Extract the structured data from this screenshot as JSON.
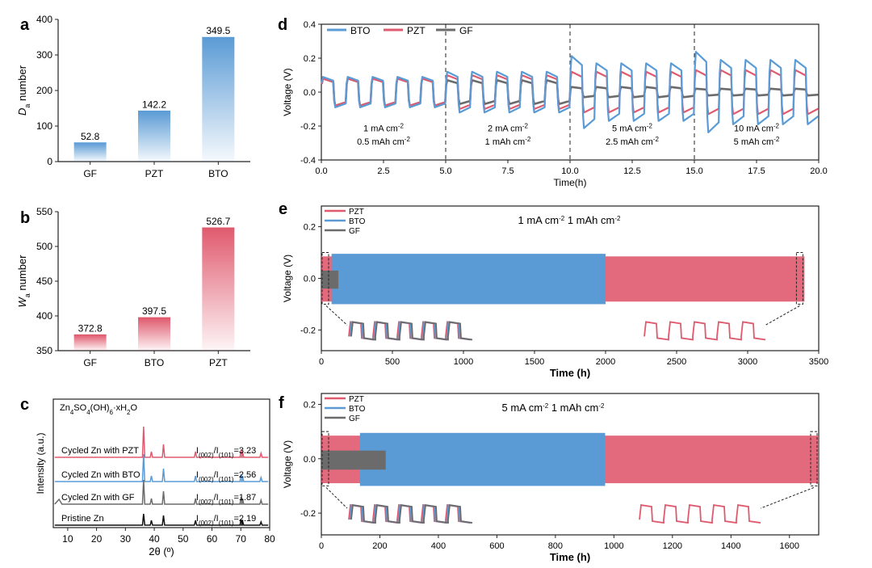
{
  "colors": {
    "btoBlue": "#5b9bd5",
    "pztRed": "#e05a6e",
    "gfGray": "#6b6b6b",
    "xrdBlack": "#111111"
  },
  "chart_data": [
    {
      "id": "a",
      "panel": "a",
      "type": "bar",
      "ylabel_main": "D",
      "ylabel_sub": "a",
      "ylabel_rest": " number",
      "categories": [
        "GF",
        "PZT",
        "BTO"
      ],
      "values": [
        52.8,
        142.2,
        349.5
      ],
      "value_labels": [
        "52.8",
        "142.2",
        "349.5"
      ],
      "colors": [
        "#5b9bd5",
        "#5b9bd5",
        "#5b9bd5"
      ],
      "ylim": [
        0,
        400
      ],
      "yticks": [
        "0",
        "100",
        "200",
        "300",
        "400"
      ]
    },
    {
      "id": "b",
      "panel": "b",
      "type": "bar",
      "ylabel_main": "W",
      "ylabel_sub": "a",
      "ylabel_rest": " number",
      "categories": [
        "GF",
        "BTO",
        "PZT"
      ],
      "values": [
        372.8,
        397.5,
        526.7
      ],
      "value_labels": [
        "372.8",
        "397.5",
        "526.7"
      ],
      "colors": [
        "#e05a6e",
        "#e05a6e",
        "#e05a6e"
      ],
      "ylim": [
        350,
        550
      ],
      "yticks": [
        "350",
        "400",
        "450",
        "500",
        "550"
      ]
    },
    {
      "id": "c",
      "panel": "c",
      "type": "line",
      "xlabel": "2θ (º)",
      "ylabel": "Intensity (a.u.)",
      "xlim": [
        5,
        80
      ],
      "xticks": [
        "10",
        "20",
        "30",
        "40",
        "50",
        "60",
        "70",
        "80"
      ],
      "reference_label": "Zn4SO4(OH)6·xH2O",
      "series": [
        {
          "name": "Cycled Zn with PZT",
          "ratio_label": "I(002)/I(101)=3.23",
          "color": "#e05a6e"
        },
        {
          "name": "Cycled Zn with BTO",
          "ratio_label": "I(002)/I(101)=2.56",
          "color": "#5b9bd5"
        },
        {
          "name": "Cycled Zn with GF",
          "ratio_label": "I(002)/I(101)=1.87",
          "color": "#6b6b6b"
        },
        {
          "name": "Pristine Zn",
          "ratio_label": "I(002)/I(101)=2.19",
          "color": "#111111"
        }
      ],
      "peaks_2theta": [
        36.3,
        39.0,
        43.2,
        54.3,
        70.1,
        70.6,
        77.0
      ]
    },
    {
      "id": "d",
      "panel": "d",
      "type": "line",
      "xlabel": "Time(h)",
      "ylabel": "Voltage (V)",
      "xlim": [
        0,
        20
      ],
      "xticks": [
        "0.0",
        "2.5",
        "5.0",
        "7.5",
        "10.0",
        "12.5",
        "15.0",
        "17.5",
        "20.0"
      ],
      "ylim": [
        -0.4,
        0.4
      ],
      "yticks": [
        "-0.4",
        "-0.2",
        "0.0",
        "0.2",
        "0.4"
      ],
      "legend": [
        "BTO",
        "PZT",
        "GF"
      ],
      "dividers_h": [
        5,
        10,
        15
      ],
      "segments": [
        {
          "line1": "1 mA cm-2",
          "line2": "0.5 mAh cm-2"
        },
        {
          "line1": "2 mA cm-2",
          "line2": "1 mAh cm-2"
        },
        {
          "line1": "5 mA cm-2",
          "line2": "2.5 mAh cm-2"
        },
        {
          "line1": "10 mA cm-2",
          "line2": "5 mAh cm-2"
        }
      ],
      "amplitude_V": {
        "BTO": [
          0.09,
          0.12,
          0.17,
          0.19
        ],
        "PZT": [
          0.08,
          0.1,
          0.12,
          0.13
        ],
        "GF": [
          0.08,
          0.07,
          0.03,
          0.02
        ]
      }
    },
    {
      "id": "e",
      "panel": "e",
      "type": "line",
      "xlabel": "Time (h)",
      "ylabel": "Voltage (V)",
      "title": "1 mA cm-2  1 mAh cm-2",
      "xlim": [
        0,
        3500
      ],
      "xticks": [
        "0",
        "500",
        "1000",
        "1500",
        "2000",
        "2500",
        "3000",
        "3500"
      ],
      "ylim": [
        -0.28,
        0.28
      ],
      "yticks": [
        "-0.2",
        "0.0",
        "0.2"
      ],
      "legend": [
        "PZT",
        "BTO",
        "GF"
      ],
      "lifespan_h": {
        "GF": 120,
        "BTO": 2000,
        "PZT": 3400
      }
    },
    {
      "id": "f",
      "panel": "f",
      "type": "line",
      "xlabel": "Time (h)",
      "ylabel": "Voltage (V)",
      "title": "5 mA cm-2  1 mAh cm-2",
      "xlim": [
        0,
        1700
      ],
      "xticks": [
        "0",
        "200",
        "400",
        "600",
        "800",
        "1000",
        "1200",
        "1400",
        "1600"
      ],
      "ylim": [
        -0.28,
        0.24
      ],
      "yticks": [
        "-0.2",
        "0.0",
        "0.2"
      ],
      "legend": [
        "PZT",
        "BTO",
        "GF"
      ],
      "lifespan_h": {
        "GF": 220,
        "BTO": 970,
        "PZT": 1700
      }
    }
  ]
}
